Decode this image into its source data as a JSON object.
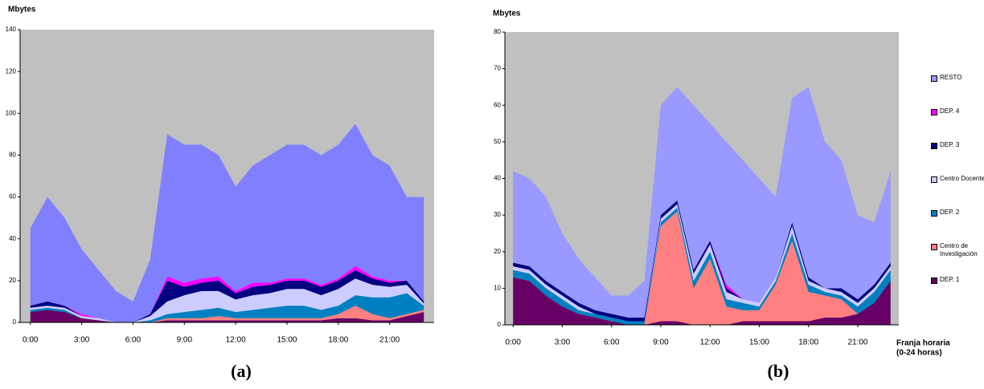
{
  "chart_data": [
    {
      "type": "stacked-area",
      "ylabel": "Mbytes",
      "caption": "(a)",
      "background": "#c0c0c0",
      "x": [
        0,
        1,
        2,
        3,
        4,
        5,
        6,
        7,
        8,
        9,
        10,
        11,
        12,
        13,
        14,
        15,
        16,
        17,
        18,
        19,
        20,
        21,
        22,
        23
      ],
      "xlim": [
        -0.6,
        23.6
      ],
      "xticks": [
        {
          "value": 0,
          "label": "0:00"
        },
        {
          "value": 3,
          "label": "3:00"
        },
        {
          "value": 6,
          "label": "6:00"
        },
        {
          "value": 9,
          "label": "9:00"
        },
        {
          "value": 12,
          "label": "12:00"
        },
        {
          "value": 15,
          "label": "15:00"
        },
        {
          "value": 18,
          "label": "18:00"
        },
        {
          "value": 21,
          "label": "21:00"
        }
      ],
      "ylim": [
        0,
        140
      ],
      "yticks": [
        0,
        20,
        40,
        60,
        80,
        100,
        120,
        140
      ],
      "series": [
        {
          "color": "#660066",
          "values": [
            5,
            6,
            5,
            2,
            1,
            0,
            0,
            0,
            1,
            1,
            1,
            1,
            1,
            1,
            1,
            1,
            1,
            1,
            2,
            2,
            1,
            1,
            3,
            5
          ]
        },
        {
          "color": "#ff8080",
          "values": [
            0,
            0,
            0,
            0,
            0,
            0,
            0,
            0,
            1,
            1,
            1,
            2,
            1,
            1,
            1,
            1,
            1,
            1,
            2,
            6,
            3,
            1,
            1,
            1
          ]
        },
        {
          "color": "#0080c0",
          "values": [
            1,
            1,
            1,
            0,
            0,
            0,
            0,
            1,
            2,
            3,
            4,
            4,
            3,
            4,
            5,
            6,
            6,
            4,
            4,
            5,
            8,
            10,
            10,
            2
          ]
        },
        {
          "color": "#ccccff",
          "values": [
            1,
            1,
            1,
            1,
            1,
            0,
            0,
            2,
            6,
            8,
            9,
            8,
            6,
            7,
            7,
            8,
            8,
            7,
            8,
            8,
            6,
            5,
            4,
            1
          ]
        },
        {
          "color": "#000080",
          "values": [
            1,
            2,
            1,
            0,
            0,
            0,
            0,
            1,
            10,
            4,
            4,
            5,
            3,
            4,
            4,
            4,
            4,
            4,
            4,
            4,
            3,
            2,
            2,
            1
          ]
        },
        {
          "color": "#ff00ff",
          "values": [
            0,
            0,
            0,
            1,
            0,
            0,
            0,
            0,
            2,
            2,
            2,
            2,
            1,
            2,
            1,
            1,
            1,
            1,
            1,
            2,
            1,
            1,
            0,
            0
          ]
        },
        {
          "color": "#8080ff",
          "values": [
            37,
            50,
            42,
            31,
            23,
            15,
            10,
            26,
            68,
            66,
            64,
            58,
            50,
            56,
            61,
            64,
            64,
            62,
            64,
            68,
            58,
            55,
            40,
            50
          ]
        }
      ]
    },
    {
      "type": "stacked-area",
      "ylabel": "Mbytes",
      "caption": "(b)",
      "background": "#c0c0c0",
      "xlabel": [
        "Franja horaria",
        "(0-24 horas)"
      ],
      "legend": "right",
      "x": [
        0,
        1,
        2,
        3,
        4,
        5,
        6,
        7,
        8,
        9,
        10,
        11,
        12,
        13,
        14,
        15,
        16,
        17,
        18,
        19,
        20,
        21,
        22,
        23
      ],
      "xlim": [
        -0.5,
        23.5
      ],
      "xticks": [
        {
          "value": 0,
          "label": "0:00"
        },
        {
          "value": 3,
          "label": "3:00"
        },
        {
          "value": 6,
          "label": "6:00"
        },
        {
          "value": 9,
          "label": "9:00"
        },
        {
          "value": 12,
          "label": "12:00"
        },
        {
          "value": 15,
          "label": "15:00"
        },
        {
          "value": 18,
          "label": "18:00"
        },
        {
          "value": 21,
          "label": "21:00"
        }
      ],
      "ylim": [
        0,
        80
      ],
      "yticks": [
        0,
        10,
        20,
        30,
        40,
        50,
        60,
        70,
        80
      ],
      "series": [
        {
          "name": "DEP. 1",
          "color": "#660066",
          "values": [
            13,
            12,
            8,
            5,
            3,
            2,
            1,
            0,
            0,
            1,
            1,
            0,
            0,
            0,
            1,
            1,
            1,
            1,
            1,
            2,
            2,
            3,
            6,
            12
          ]
        },
        {
          "name": "Centro de Investigación",
          "color": "#ff8080",
          "values": [
            0,
            0,
            0,
            0,
            0,
            0,
            0,
            0,
            0,
            26,
            30,
            10,
            18,
            5,
            3,
            3,
            10,
            22,
            8,
            6,
            5,
            0,
            0,
            0
          ]
        },
        {
          "name": "DEP. 2",
          "color": "#0080c0",
          "values": [
            2,
            2,
            2,
            2,
            1,
            1,
            1,
            1,
            1,
            1,
            1,
            2,
            2,
            2,
            2,
            1,
            1,
            2,
            2,
            1,
            1,
            2,
            3,
            3
          ]
        },
        {
          "name": "Centro Docente",
          "color": "#ccccff",
          "values": [
            1,
            1,
            1,
            1,
            1,
            0,
            0,
            0,
            0,
            1,
            1,
            2,
            2,
            2,
            1,
            1,
            1,
            2,
            1,
            1,
            1,
            1,
            1,
            1
          ]
        },
        {
          "name": "DEP. 3",
          "color": "#000080",
          "values": [
            1,
            1,
            1,
            1,
            1,
            1,
            1,
            1,
            1,
            1,
            1,
            1,
            1,
            1,
            0,
            0,
            0,
            1,
            1,
            0,
            1,
            1,
            1,
            1
          ]
        },
        {
          "name": "DEP. 4",
          "color": "#ff00ff",
          "values": [
            0,
            0,
            0,
            0,
            0,
            0,
            0,
            0,
            0,
            0,
            0,
            0,
            0,
            1,
            0,
            0,
            0,
            0,
            0,
            0,
            0,
            0,
            0,
            0
          ]
        },
        {
          "name": "RESTO",
          "color": "#9999ff",
          "values": [
            25,
            24,
            23,
            16,
            12,
            9,
            5,
            6,
            10,
            30,
            31,
            45,
            32,
            39,
            38,
            34,
            22,
            34,
            52,
            40,
            35,
            23,
            17,
            25
          ]
        }
      ]
    }
  ]
}
